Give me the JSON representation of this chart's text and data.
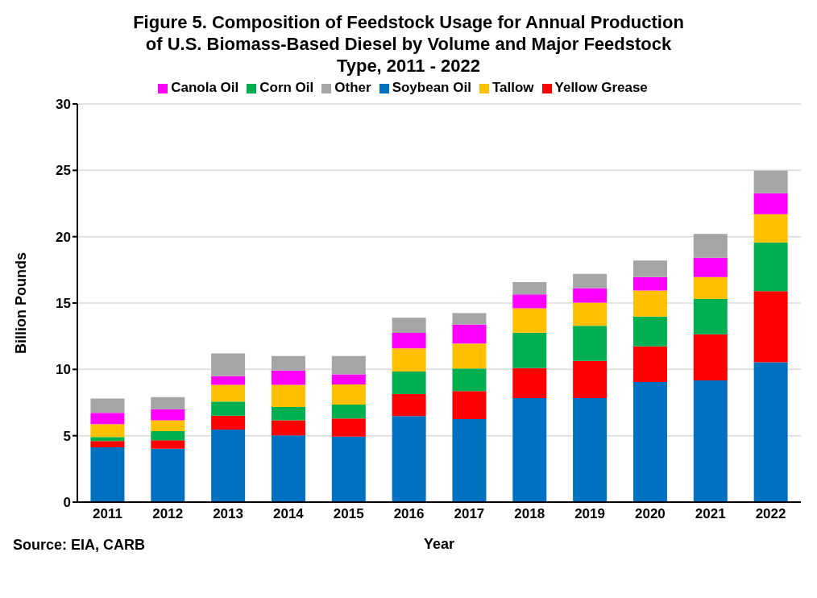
{
  "chart_data": {
    "type": "bar",
    "title": "Figure 5. Composition of Feedstock Usage for Annual Production of U.S. Biomass-Based Diesel by Volume and Major Feedstock Type, 2011 - 2022",
    "xlabel": "Year",
    "ylabel": "Billion Pounds",
    "annotations": [
      "Source: EIA, CARB"
    ],
    "stacked": true,
    "legend": "top",
    "grid": "y",
    "ylim": [
      0,
      30
    ],
    "yticks": [
      0,
      5,
      10,
      15,
      20,
      25,
      30
    ],
    "categories": [
      "2011",
      "2012",
      "2013",
      "2014",
      "2015",
      "2016",
      "2017",
      "2018",
      "2019",
      "2020",
      "2021",
      "2022"
    ],
    "series": [
      {
        "name": "Soybean Oil",
        "color": "#0070c0",
        "values": [
          4.13,
          4.03,
          5.47,
          5.02,
          4.94,
          6.48,
          6.25,
          7.83,
          7.83,
          9.05,
          9.17,
          10.54
        ]
      },
      {
        "name": "Yellow Grease",
        "color": "#ff0000",
        "values": [
          0.47,
          0.63,
          1.05,
          1.15,
          1.36,
          1.66,
          2.11,
          2.27,
          2.81,
          2.69,
          3.48,
          5.36
        ]
      },
      {
        "name": "Corn Oil",
        "color": "#00b050",
        "values": [
          0.3,
          0.68,
          1.05,
          1.0,
          1.05,
          1.7,
          1.7,
          2.67,
          2.65,
          2.24,
          2.65,
          3.67
        ]
      },
      {
        "name": "Tallow",
        "color": "#ffc000",
        "values": [
          0.97,
          0.83,
          1.26,
          1.66,
          1.52,
          1.74,
          1.89,
          1.83,
          1.74,
          1.96,
          1.66,
          2.13
        ]
      },
      {
        "name": "Canola Oil",
        "color": "#ff00ff",
        "values": [
          0.85,
          0.83,
          0.66,
          1.09,
          0.75,
          1.17,
          1.42,
          1.05,
          1.1,
          1.02,
          1.45,
          1.57
        ]
      },
      {
        "name": "Other",
        "color": "#a5a5a5",
        "values": [
          1.09,
          0.91,
          1.72,
          1.09,
          1.39,
          1.14,
          0.87,
          0.93,
          1.07,
          1.24,
          1.8,
          1.7
        ]
      }
    ]
  }
}
